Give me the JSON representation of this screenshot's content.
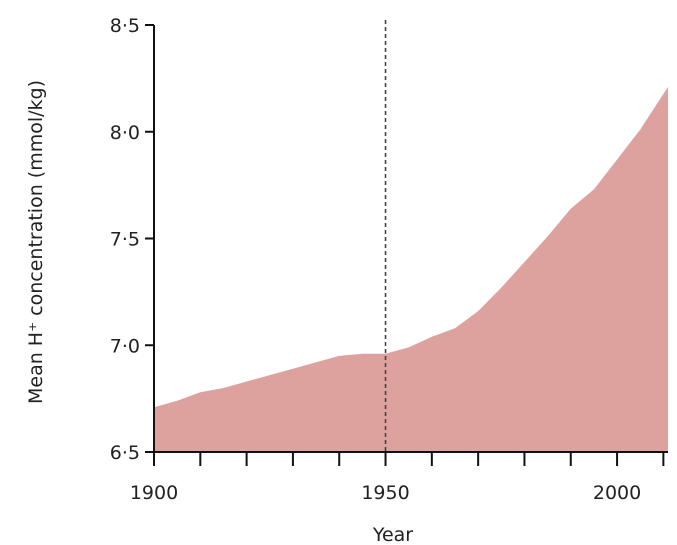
{
  "chart_data": {
    "type": "area",
    "title": "",
    "xlabel": "Year",
    "ylabel": "Mean H⁺ concentration (mmol/kg)",
    "xlim": [
      1900,
      2011
    ],
    "ylim": [
      6.5,
      8.5
    ],
    "x_ticks": [
      1900,
      1910,
      1920,
      1930,
      1940,
      1950,
      1960,
      1970,
      1980,
      1990,
      2000,
      2010
    ],
    "x_tick_labels": [
      {
        "value": 1900,
        "label": "1900"
      },
      {
        "value": 1950,
        "label": "1950"
      },
      {
        "value": 2000,
        "label": "2000"
      }
    ],
    "y_ticks": [
      {
        "value": 6.5,
        "label": "6·5"
      },
      {
        "value": 7.0,
        "label": "7·0"
      },
      {
        "value": 7.5,
        "label": "7·5"
      },
      {
        "value": 8.0,
        "label": "8·0"
      },
      {
        "value": 8.5,
        "label": "8·5"
      }
    ],
    "reference_line": {
      "x": 1950,
      "style": "dashed"
    },
    "grid": false,
    "legend": "none",
    "fill_color": "#dda29d",
    "series": [
      {
        "x": [
          1900,
          1905,
          1910,
          1915,
          1920,
          1925,
          1930,
          1935,
          1940,
          1945,
          1950,
          1955,
          1960,
          1965,
          1970,
          1975,
          1980,
          1985,
          1990,
          1995,
          2000,
          2005,
          2011
        ],
        "values": [
          6.71,
          6.74,
          6.78,
          6.8,
          6.83,
          6.86,
          6.89,
          6.92,
          6.95,
          6.96,
          6.96,
          6.99,
          7.04,
          7.08,
          7.16,
          7.27,
          7.39,
          7.51,
          7.64,
          7.73,
          7.87,
          8.01,
          8.21
        ]
      }
    ]
  }
}
